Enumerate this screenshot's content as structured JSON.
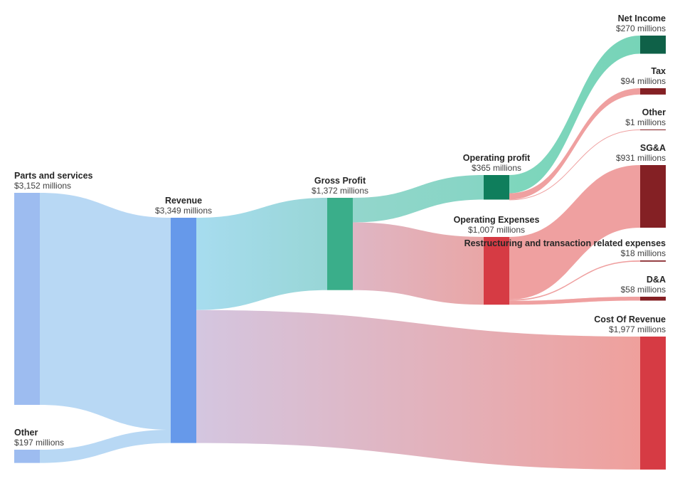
{
  "chart_data": {
    "type": "sankey",
    "unit_suffix": " millions",
    "nodes": [
      {
        "id": "parts",
        "name": "Parts and services",
        "value_label": "$3,152 millions",
        "value": 3152,
        "color": "#9dbcf0"
      },
      {
        "id": "other_in",
        "name": "Other",
        "value_label": "$197 millions",
        "value": 197,
        "color": "#9dbcf0"
      },
      {
        "id": "revenue",
        "name": "Revenue",
        "value_label": "$3,349 millions",
        "value": 3349,
        "color": "#6699ea"
      },
      {
        "id": "gross",
        "name": "Gross Profit",
        "value_label": "$1,372 millions",
        "value": 1372,
        "color": "#3aae8a"
      },
      {
        "id": "cor",
        "name": "Cost Of Revenue",
        "value_label": "$1,977 millions",
        "value": 1977,
        "color": "#d63b44"
      },
      {
        "id": "opprofit",
        "name": "Operating profit",
        "value_label": "$365 millions",
        "value": 365,
        "color": "#0f7e5c"
      },
      {
        "id": "opex",
        "name": "Operating Expenses",
        "value_label": "$1,007 millions",
        "value": 1007,
        "color": "#d63b44"
      },
      {
        "id": "netincome",
        "name": "Net Income",
        "value_label": "$270 millions",
        "value": 270,
        "color": "#0f6148"
      },
      {
        "id": "tax",
        "name": "Tax",
        "value_label": "$94 millions",
        "value": 94,
        "color": "#842024"
      },
      {
        "id": "other_out",
        "name": "Other",
        "value_label": "$1 millions",
        "value": 1,
        "color": "#842024"
      },
      {
        "id": "sga",
        "name": "SG&A",
        "value_label": "$931 millions",
        "value": 931,
        "color": "#842024"
      },
      {
        "id": "restructuring",
        "name": "Restructuring and transaction related expenses",
        "value_label": "$18 millions",
        "value": 18,
        "color": "#842024"
      },
      {
        "id": "da",
        "name": "D&A",
        "value_label": "$58 millions",
        "value": 58,
        "color": "#842024"
      }
    ],
    "links": [
      {
        "source": "parts",
        "target": "revenue",
        "value": 3152
      },
      {
        "source": "other_in",
        "target": "revenue",
        "value": 197
      },
      {
        "source": "revenue",
        "target": "gross",
        "value": 1372
      },
      {
        "source": "revenue",
        "target": "cor",
        "value": 1977
      },
      {
        "source": "gross",
        "target": "opprofit",
        "value": 365
      },
      {
        "source": "gross",
        "target": "opex",
        "value": 1007
      },
      {
        "source": "opprofit",
        "target": "netincome",
        "value": 270
      },
      {
        "source": "opprofit",
        "target": "tax",
        "value": 94
      },
      {
        "source": "opprofit",
        "target": "other_out",
        "value": 1
      },
      {
        "source": "opex",
        "target": "sga",
        "value": 931
      },
      {
        "source": "opex",
        "target": "restructuring",
        "value": 18
      },
      {
        "source": "opex",
        "target": "da",
        "value": 58
      }
    ]
  }
}
